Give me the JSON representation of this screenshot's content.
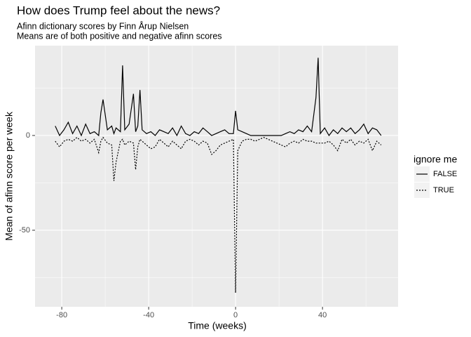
{
  "chart_data": {
    "type": "line",
    "title": "How does Trump feel about the news?",
    "subtitle": [
      "Afinn dictionary scores by Finn Årup Nielsen",
      "Means are of both positive and negative afinn scores"
    ],
    "x_label": "Time (weeks)",
    "y_label": "Mean of afinn score per week",
    "legend_title": "ignore me",
    "legend_position": "right",
    "x": [
      -83,
      -81,
      -79,
      -77,
      -75,
      -73,
      -71,
      -69,
      -67,
      -65,
      -63,
      -62,
      -61,
      -59,
      -57,
      -56,
      -55,
      -53,
      -52,
      -51,
      -49,
      -47,
      -46,
      -45,
      -44,
      -43,
      -41,
      -39,
      -37,
      -35,
      -33,
      -31,
      -29,
      -27,
      -25,
      -23,
      -21,
      -19,
      -17,
      -15,
      -13,
      -11,
      -9,
      -7,
      -5,
      -3,
      -1,
      0,
      1,
      3,
      5,
      7,
      9,
      11,
      13,
      15,
      17,
      19,
      21,
      23,
      25,
      27,
      29,
      31,
      33,
      35,
      37,
      38,
      39,
      41,
      43,
      45,
      47,
      49,
      51,
      53,
      55,
      57,
      59,
      61,
      63,
      65,
      67
    ],
    "series": [
      {
        "name": "FALSE",
        "color": "#000000",
        "linetype": "solid",
        "values": [
          5,
          0,
          3,
          7,
          1,
          5,
          0,
          6,
          1,
          2,
          0,
          12,
          19,
          3,
          5,
          1,
          4,
          2,
          37,
          3,
          6,
          22,
          2,
          5,
          24,
          3,
          1,
          2,
          0,
          3,
          2,
          1,
          4,
          0,
          5,
          1,
          0,
          2,
          1,
          4,
          2,
          0,
          1,
          2,
          3,
          1,
          1,
          13,
          3,
          2,
          1,
          0,
          0,
          0,
          0,
          0,
          0,
          0,
          0,
          1,
          2,
          1,
          3,
          2,
          5,
          2,
          20,
          41,
          1,
          4,
          0,
          3,
          1,
          4,
          2,
          4,
          1,
          3,
          6,
          1,
          4,
          3,
          0
        ]
      },
      {
        "name": "TRUE",
        "color": "#000000",
        "linetype": "dotted",
        "values": [
          -3,
          -6,
          -3,
          -2,
          -3,
          -1,
          -3,
          -2,
          -4,
          -2,
          -9,
          -3,
          -1,
          -4,
          -5,
          -24,
          -14,
          -3,
          -2,
          -5,
          -3,
          -4,
          -18,
          -6,
          -2,
          -3,
          -5,
          -7,
          -6,
          -2,
          -4,
          -6,
          -3,
          -5,
          -7,
          -3,
          -2,
          -3,
          -5,
          -3,
          -4,
          -10,
          -8,
          -5,
          -4,
          -3,
          -2,
          -83,
          -8,
          -3,
          -2,
          -2,
          -3,
          -2,
          -1,
          -2,
          -3,
          -4,
          -5,
          -6,
          -4,
          -3,
          -4,
          -2,
          -3,
          -3,
          -4,
          -4,
          -4,
          -4,
          -3,
          -5,
          -8,
          -2,
          -4,
          -2,
          -5,
          -3,
          -4,
          -2,
          -8,
          -3,
          -5
        ]
      }
    ],
    "xlim": [
      -92.3,
      74.8
    ],
    "xticks": [
      -80,
      -40,
      0,
      40
    ],
    "ylim": [
      -90.4,
      47.4
    ],
    "yticks": [
      -50,
      0
    ],
    "grid": true,
    "minor_grid": true
  }
}
